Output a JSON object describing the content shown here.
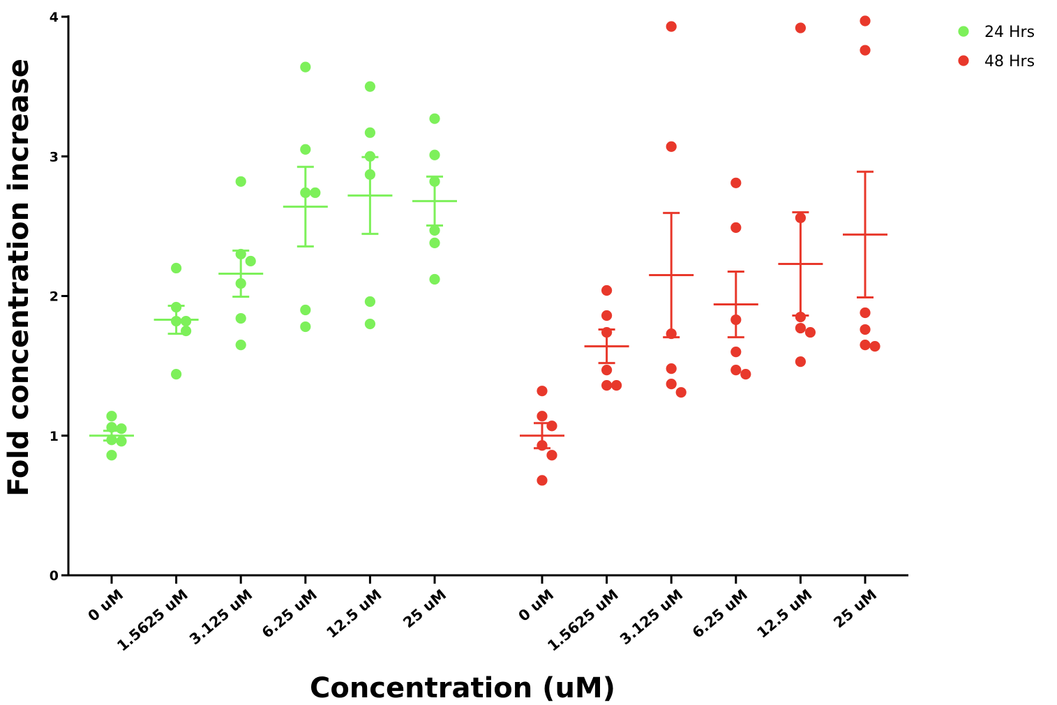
{
  "chart_data": {
    "type": "scatter",
    "title": "",
    "xlabel": "Concentration (uM)",
    "ylabel": "Fold concentration increase",
    "ylim": [
      0,
      4
    ],
    "yticks": [
      0,
      1,
      2,
      3,
      4
    ],
    "grid": false,
    "legend_position": "top-right",
    "categories": [
      "0 uM",
      "1.5625 uM",
      "3.125 uM",
      "6.25 uM",
      "12.5 uM",
      "25 uM"
    ],
    "series": [
      {
        "name": "24 Hrs",
        "color": "#7df05a",
        "groups": [
          {
            "category": "0 uM",
            "mean": 1.0,
            "sem": 0.035,
            "points": [
              1.14,
              1.06,
              1.05,
              0.97,
              0.96,
              0.86
            ]
          },
          {
            "category": "1.5625 uM",
            "mean": 1.83,
            "sem": 0.1,
            "points": [
              2.2,
              1.92,
              1.82,
              1.82,
              1.75,
              1.44
            ]
          },
          {
            "category": "3.125 uM",
            "mean": 2.16,
            "sem": 0.165,
            "points": [
              2.82,
              2.3,
              2.25,
              2.09,
              1.84,
              1.65
            ]
          },
          {
            "category": "6.25 uM",
            "mean": 2.64,
            "sem": 0.285,
            "points": [
              3.64,
              3.05,
              2.74,
              2.74,
              1.9,
              1.78
            ]
          },
          {
            "category": "12.5 uM",
            "mean": 2.72,
            "sem": 0.275,
            "points": [
              3.5,
              3.17,
              3.0,
              2.87,
              1.96,
              1.8
            ]
          },
          {
            "category": "25 uM",
            "mean": 2.68,
            "sem": 0.175,
            "points": [
              3.27,
              3.01,
              2.82,
              2.47,
              2.38,
              2.12
            ]
          }
        ]
      },
      {
        "name": "48 Hrs",
        "color": "#e8382b",
        "groups": [
          {
            "category": "0 uM",
            "mean": 1.0,
            "sem": 0.09,
            "points": [
              1.32,
              1.14,
              1.07,
              0.93,
              0.86,
              0.68
            ]
          },
          {
            "category": "1.5625 uM",
            "mean": 1.64,
            "sem": 0.12,
            "points": [
              2.04,
              1.86,
              1.74,
              1.47,
              1.36,
              1.36
            ]
          },
          {
            "category": "3.125 uM",
            "mean": 2.15,
            "sem": 0.445,
            "points": [
              3.93,
              3.07,
              1.73,
              1.48,
              1.37,
              1.31
            ]
          },
          {
            "category": "6.25 uM",
            "mean": 1.94,
            "sem": 0.235,
            "points": [
              2.81,
              2.49,
              1.83,
              1.6,
              1.47,
              1.44
            ]
          },
          {
            "category": "12.5 uM",
            "mean": 2.23,
            "sem": 0.37,
            "points": [
              3.92,
              2.56,
              1.85,
              1.77,
              1.74,
              1.53
            ]
          },
          {
            "category": "25 uM",
            "mean": 2.44,
            "sem": 0.45,
            "points": [
              3.97,
              3.76,
              1.88,
              1.76,
              1.65,
              1.64
            ]
          }
        ]
      }
    ]
  }
}
